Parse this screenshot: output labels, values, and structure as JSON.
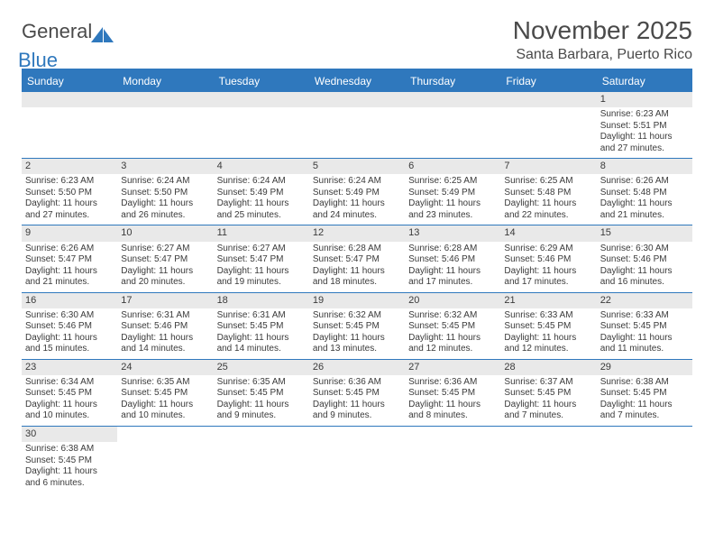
{
  "logo": {
    "text_general": "General",
    "text_blue": "Blue",
    "sail_color": "#2f78bd"
  },
  "header": {
    "month_title": "November 2025",
    "location": "Santa Barbara, Puerto Rico"
  },
  "colors": {
    "header_bar": "#2f78bd",
    "daynum_bg": "#e9e9e9",
    "text": "#3a3a3a",
    "cell_border": "#2f78bd"
  },
  "day_headers": [
    "Sunday",
    "Monday",
    "Tuesday",
    "Wednesday",
    "Thursday",
    "Friday",
    "Saturday"
  ],
  "weeks": [
    [
      {
        "empty": true
      },
      {
        "empty": true
      },
      {
        "empty": true
      },
      {
        "empty": true
      },
      {
        "empty": true
      },
      {
        "empty": true
      },
      {
        "num": "1",
        "sunrise": "Sunrise: 6:23 AM",
        "sunset": "Sunset: 5:51 PM",
        "day1": "Daylight: 11 hours",
        "day2": "and 27 minutes."
      }
    ],
    [
      {
        "num": "2",
        "sunrise": "Sunrise: 6:23 AM",
        "sunset": "Sunset: 5:50 PM",
        "day1": "Daylight: 11 hours",
        "day2": "and 27 minutes."
      },
      {
        "num": "3",
        "sunrise": "Sunrise: 6:24 AM",
        "sunset": "Sunset: 5:50 PM",
        "day1": "Daylight: 11 hours",
        "day2": "and 26 minutes."
      },
      {
        "num": "4",
        "sunrise": "Sunrise: 6:24 AM",
        "sunset": "Sunset: 5:49 PM",
        "day1": "Daylight: 11 hours",
        "day2": "and 25 minutes."
      },
      {
        "num": "5",
        "sunrise": "Sunrise: 6:24 AM",
        "sunset": "Sunset: 5:49 PM",
        "day1": "Daylight: 11 hours",
        "day2": "and 24 minutes."
      },
      {
        "num": "6",
        "sunrise": "Sunrise: 6:25 AM",
        "sunset": "Sunset: 5:49 PM",
        "day1": "Daylight: 11 hours",
        "day2": "and 23 minutes."
      },
      {
        "num": "7",
        "sunrise": "Sunrise: 6:25 AM",
        "sunset": "Sunset: 5:48 PM",
        "day1": "Daylight: 11 hours",
        "day2": "and 22 minutes."
      },
      {
        "num": "8",
        "sunrise": "Sunrise: 6:26 AM",
        "sunset": "Sunset: 5:48 PM",
        "day1": "Daylight: 11 hours",
        "day2": "and 21 minutes."
      }
    ],
    [
      {
        "num": "9",
        "sunrise": "Sunrise: 6:26 AM",
        "sunset": "Sunset: 5:47 PM",
        "day1": "Daylight: 11 hours",
        "day2": "and 21 minutes."
      },
      {
        "num": "10",
        "sunrise": "Sunrise: 6:27 AM",
        "sunset": "Sunset: 5:47 PM",
        "day1": "Daylight: 11 hours",
        "day2": "and 20 minutes."
      },
      {
        "num": "11",
        "sunrise": "Sunrise: 6:27 AM",
        "sunset": "Sunset: 5:47 PM",
        "day1": "Daylight: 11 hours",
        "day2": "and 19 minutes."
      },
      {
        "num": "12",
        "sunrise": "Sunrise: 6:28 AM",
        "sunset": "Sunset: 5:47 PM",
        "day1": "Daylight: 11 hours",
        "day2": "and 18 minutes."
      },
      {
        "num": "13",
        "sunrise": "Sunrise: 6:28 AM",
        "sunset": "Sunset: 5:46 PM",
        "day1": "Daylight: 11 hours",
        "day2": "and 17 minutes."
      },
      {
        "num": "14",
        "sunrise": "Sunrise: 6:29 AM",
        "sunset": "Sunset: 5:46 PM",
        "day1": "Daylight: 11 hours",
        "day2": "and 17 minutes."
      },
      {
        "num": "15",
        "sunrise": "Sunrise: 6:30 AM",
        "sunset": "Sunset: 5:46 PM",
        "day1": "Daylight: 11 hours",
        "day2": "and 16 minutes."
      }
    ],
    [
      {
        "num": "16",
        "sunrise": "Sunrise: 6:30 AM",
        "sunset": "Sunset: 5:46 PM",
        "day1": "Daylight: 11 hours",
        "day2": "and 15 minutes."
      },
      {
        "num": "17",
        "sunrise": "Sunrise: 6:31 AM",
        "sunset": "Sunset: 5:46 PM",
        "day1": "Daylight: 11 hours",
        "day2": "and 14 minutes."
      },
      {
        "num": "18",
        "sunrise": "Sunrise: 6:31 AM",
        "sunset": "Sunset: 5:45 PM",
        "day1": "Daylight: 11 hours",
        "day2": "and 14 minutes."
      },
      {
        "num": "19",
        "sunrise": "Sunrise: 6:32 AM",
        "sunset": "Sunset: 5:45 PM",
        "day1": "Daylight: 11 hours",
        "day2": "and 13 minutes."
      },
      {
        "num": "20",
        "sunrise": "Sunrise: 6:32 AM",
        "sunset": "Sunset: 5:45 PM",
        "day1": "Daylight: 11 hours",
        "day2": "and 12 minutes."
      },
      {
        "num": "21",
        "sunrise": "Sunrise: 6:33 AM",
        "sunset": "Sunset: 5:45 PM",
        "day1": "Daylight: 11 hours",
        "day2": "and 12 minutes."
      },
      {
        "num": "22",
        "sunrise": "Sunrise: 6:33 AM",
        "sunset": "Sunset: 5:45 PM",
        "day1": "Daylight: 11 hours",
        "day2": "and 11 minutes."
      }
    ],
    [
      {
        "num": "23",
        "sunrise": "Sunrise: 6:34 AM",
        "sunset": "Sunset: 5:45 PM",
        "day1": "Daylight: 11 hours",
        "day2": "and 10 minutes."
      },
      {
        "num": "24",
        "sunrise": "Sunrise: 6:35 AM",
        "sunset": "Sunset: 5:45 PM",
        "day1": "Daylight: 11 hours",
        "day2": "and 10 minutes."
      },
      {
        "num": "25",
        "sunrise": "Sunrise: 6:35 AM",
        "sunset": "Sunset: 5:45 PM",
        "day1": "Daylight: 11 hours",
        "day2": "and 9 minutes."
      },
      {
        "num": "26",
        "sunrise": "Sunrise: 6:36 AM",
        "sunset": "Sunset: 5:45 PM",
        "day1": "Daylight: 11 hours",
        "day2": "and 9 minutes."
      },
      {
        "num": "27",
        "sunrise": "Sunrise: 6:36 AM",
        "sunset": "Sunset: 5:45 PM",
        "day1": "Daylight: 11 hours",
        "day2": "and 8 minutes."
      },
      {
        "num": "28",
        "sunrise": "Sunrise: 6:37 AM",
        "sunset": "Sunset: 5:45 PM",
        "day1": "Daylight: 11 hours",
        "day2": "and 7 minutes."
      },
      {
        "num": "29",
        "sunrise": "Sunrise: 6:38 AM",
        "sunset": "Sunset: 5:45 PM",
        "day1": "Daylight: 11 hours",
        "day2": "and 7 minutes."
      }
    ],
    [
      {
        "num": "30",
        "sunrise": "Sunrise: 6:38 AM",
        "sunset": "Sunset: 5:45 PM",
        "day1": "Daylight: 11 hours",
        "day2": "and 6 minutes."
      },
      {
        "empty": true
      },
      {
        "empty": true
      },
      {
        "empty": true
      },
      {
        "empty": true
      },
      {
        "empty": true
      },
      {
        "empty": true
      }
    ]
  ]
}
